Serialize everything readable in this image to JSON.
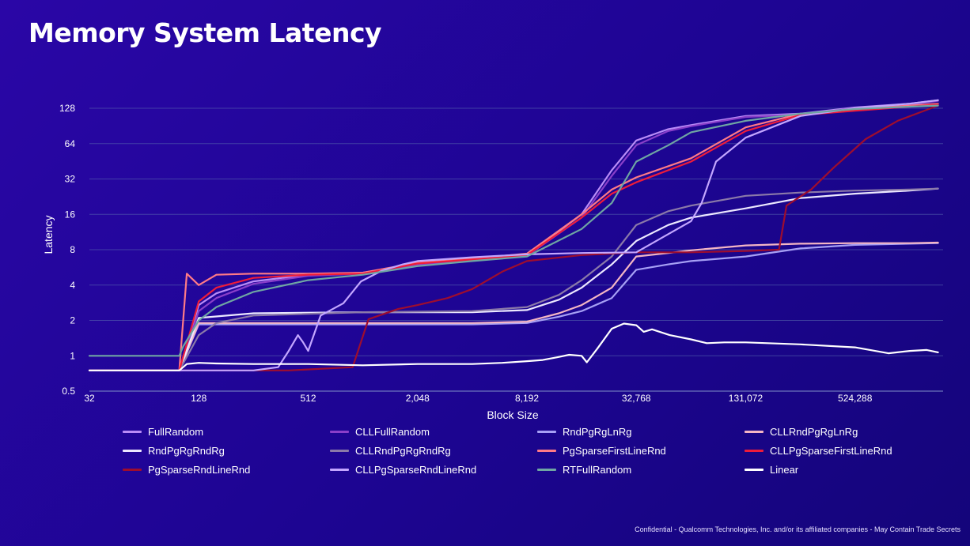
{
  "slide": {
    "title": "Memory System Latency",
    "footer": "Confidential - Qualcomm Technologies, Inc. and/or its affiliated companies - May Contain Trade Secrets"
  },
  "chart_data": {
    "type": "line",
    "title": "",
    "xlabel": "Block Size",
    "ylabel": "Latency",
    "x_scale": "log2",
    "y_scale": "log2",
    "xlim": [
      32,
      1600000
    ],
    "ylim": [
      0.5,
      180
    ],
    "x_ticks": [
      32,
      128,
      512,
      2048,
      8192,
      32768,
      131072,
      524288
    ],
    "x_tick_labels": [
      "32",
      "128",
      "512",
      "2,048",
      "8,192",
      "32,768",
      "131,072",
      "524,288"
    ],
    "y_ticks": [
      0.5,
      1,
      2,
      4,
      8,
      16,
      32,
      64,
      128
    ],
    "y_tick_labels": [
      "0.5",
      "1",
      "2",
      "4",
      "8",
      "16",
      "32",
      "64",
      "128"
    ],
    "grid": "horizontal",
    "legend_position": "bottom",
    "series": [
      {
        "name": "FullRandom",
        "color": "#b98cf7",
        "x": [
          32,
          100,
          128,
          160,
          256,
          512,
          1024,
          2048,
          4096,
          8192,
          16384,
          24000,
          32768,
          49152,
          65536,
          131072,
          262144,
          524288,
          1048576,
          1500000
        ],
        "y": [
          0.75,
          0.75,
          2.7,
          3.4,
          4.3,
          4.9,
          5.1,
          6.0,
          6.6,
          7.2,
          16,
          38,
          68,
          85,
          92,
          110,
          115,
          130,
          140,
          150
        ]
      },
      {
        "name": "CLLFullRandom",
        "color": "#8a3fc9",
        "x": [
          32,
          100,
          128,
          160,
          256,
          512,
          1024,
          2048,
          4096,
          8192,
          16384,
          24000,
          32768,
          49152,
          65536,
          131072,
          262144,
          524288,
          1048576,
          1500000
        ],
        "y": [
          0.75,
          0.75,
          2.4,
          3.1,
          4.1,
          4.8,
          5.0,
          5.9,
          6.5,
          7.1,
          15,
          34,
          62,
          82,
          90,
          108,
          113,
          128,
          138,
          148
        ]
      },
      {
        "name": "RndPgRgLnRg",
        "color": "#a7a0f5",
        "x": [
          32,
          100,
          128,
          256,
          1024,
          4096,
          8192,
          12288,
          16384,
          24000,
          32768,
          49152,
          65536,
          131072,
          262144,
          524288,
          1048576,
          1500000
        ],
        "y": [
          0.75,
          0.75,
          1.85,
          1.85,
          1.85,
          1.85,
          1.9,
          2.15,
          2.4,
          3.1,
          5.4,
          6.0,
          6.4,
          7.0,
          8.2,
          8.8,
          9.0,
          9.1
        ]
      },
      {
        "name": "CLLRndPgRgLnRg",
        "color": "#f4b6c4",
        "x": [
          32,
          100,
          128,
          256,
          1024,
          4096,
          8192,
          12288,
          16384,
          24000,
          32768,
          49152,
          65536,
          131072,
          262144,
          524288,
          1048576,
          1500000
        ],
        "y": [
          0.75,
          0.75,
          1.9,
          1.9,
          1.9,
          1.9,
          1.95,
          2.3,
          2.7,
          3.8,
          7.0,
          7.5,
          7.9,
          8.7,
          9.0,
          9.1,
          9.1,
          9.2
        ]
      },
      {
        "name": "RndPgRgRndRg",
        "color": "#ece8ff",
        "x": [
          32,
          100,
          128,
          256,
          1024,
          4096,
          8192,
          12288,
          16384,
          24000,
          32768,
          49152,
          65536,
          131072,
          262144,
          524288,
          1048576,
          1500000
        ],
        "y": [
          0.75,
          0.75,
          2.1,
          2.3,
          2.35,
          2.35,
          2.45,
          3.0,
          3.8,
          6.0,
          9.5,
          13,
          15,
          18,
          22,
          24,
          25.5,
          26.5
        ]
      },
      {
        "name": "CLLRndPgRgRndRg",
        "color": "#8b7aa9",
        "x": [
          32,
          100,
          128,
          160,
          256,
          1024,
          4096,
          8192,
          12288,
          16384,
          24000,
          32768,
          49152,
          65536,
          131072,
          262144,
          524288,
          1048576,
          1500000
        ],
        "y": [
          0.75,
          0.75,
          1.5,
          1.9,
          2.2,
          2.35,
          2.4,
          2.6,
          3.3,
          4.4,
          7.0,
          13,
          17,
          19,
          23,
          24.5,
          25.5,
          26,
          26.5
        ]
      },
      {
        "name": "PgSparseFirstLineRnd",
        "color": "#ff7a86",
        "x": [
          32,
          100,
          110,
          128,
          160,
          256,
          512,
          1024,
          2048,
          4096,
          8192,
          16384,
          24000,
          32768,
          65536,
          131072,
          262144,
          524288,
          1048576,
          1500000
        ],
        "y": [
          0.75,
          0.75,
          5.0,
          4.0,
          4.9,
          5.0,
          5.0,
          5.1,
          6.2,
          6.7,
          7.4,
          16,
          26,
          33,
          48,
          88,
          115,
          125,
          135,
          140
        ]
      },
      {
        "name": "CLLPgSparseFirstLineRnd",
        "color": "#ee1c3a",
        "x": [
          32,
          100,
          128,
          160,
          256,
          512,
          1024,
          2048,
          4096,
          8192,
          16384,
          24000,
          32768,
          65536,
          131072,
          262144,
          524288,
          1048576,
          1500000
        ],
        "y": [
          0.75,
          0.75,
          2.9,
          3.8,
          4.6,
          4.9,
          5.0,
          6.1,
          6.6,
          7.2,
          15,
          24,
          30,
          45,
          82,
          112,
          122,
          132,
          138
        ]
      },
      {
        "name": "PgSparseRndLineRnd",
        "color": "#9e0d2e",
        "x": [
          32,
          400,
          900,
          1100,
          1600,
          2048,
          3000,
          4096,
          6000,
          8192,
          16384,
          32768,
          65536,
          131072,
          200000,
          220000,
          300000,
          400000,
          600000,
          900000,
          1500000
        ],
        "y": [
          0.75,
          0.75,
          0.8,
          2.05,
          2.5,
          2.7,
          3.1,
          3.7,
          5.2,
          6.4,
          7.2,
          7.6,
          7.6,
          7.8,
          8.0,
          19,
          26,
          40,
          70,
          100,
          135
        ]
      },
      {
        "name": "CLLPgSparseRndLineRnd",
        "color": "#c3a6ff",
        "x": [
          32,
          100,
          128,
          256,
          350,
          400,
          450,
          480,
          512,
          600,
          800,
          1000,
          1300,
          1700,
          2048,
          4096,
          8192,
          16384,
          32768,
          65536,
          75000,
          90000,
          131072,
          262144,
          524288,
          1048576,
          1500000
        ],
        "y": [
          0.75,
          0.75,
          0.75,
          0.75,
          0.8,
          1.1,
          1.5,
          1.3,
          1.1,
          2.2,
          2.8,
          4.3,
          5.3,
          6.0,
          6.4,
          6.9,
          7.3,
          7.5,
          7.6,
          14,
          20,
          45,
          72,
          110,
          128,
          140,
          150
        ]
      },
      {
        "name": "RTFullRandom",
        "color": "#6fa6a3",
        "x": [
          32,
          100,
          105,
          128,
          160,
          256,
          512,
          1024,
          2048,
          4096,
          8192,
          16384,
          24000,
          32768,
          49152,
          65536,
          131072,
          262144,
          524288,
          1048576,
          1500000
        ],
        "y": [
          1.0,
          1.0,
          1.2,
          2.0,
          2.6,
          3.5,
          4.4,
          4.9,
          5.8,
          6.4,
          7.0,
          12,
          20,
          45,
          62,
          80,
          100,
          115,
          126,
          132,
          135
        ]
      },
      {
        "name": "Linear",
        "color": "#ffffff",
        "x": [
          32,
          100,
          110,
          128,
          160,
          256,
          512,
          1024,
          2048,
          4096,
          6000,
          8192,
          10000,
          12000,
          14000,
          16384,
          17500,
          20000,
          24000,
          28000,
          32768,
          36000,
          40000,
          50000,
          65536,
          80000,
          100000,
          131072,
          262144,
          524288,
          800000,
          1048576,
          1300000,
          1500000
        ],
        "y": [
          0.75,
          0.75,
          0.85,
          0.87,
          0.86,
          0.85,
          0.85,
          0.83,
          0.85,
          0.85,
          0.87,
          0.9,
          0.92,
          0.97,
          1.02,
          1.0,
          0.88,
          1.15,
          1.7,
          1.88,
          1.82,
          1.6,
          1.68,
          1.5,
          1.38,
          1.28,
          1.3,
          1.3,
          1.25,
          1.18,
          1.05,
          1.1,
          1.12,
          1.07
        ]
      }
    ]
  }
}
